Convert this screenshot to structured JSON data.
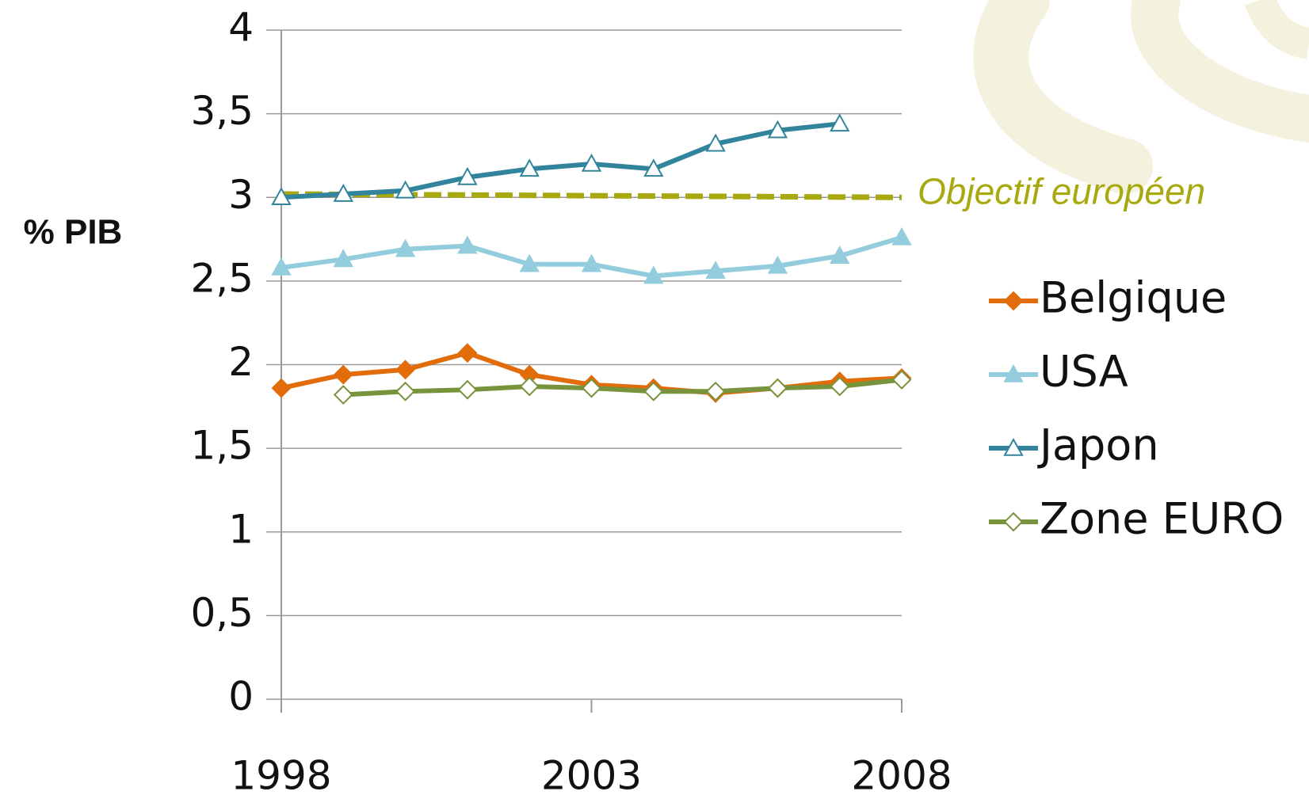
{
  "chart_data": {
    "type": "line",
    "ylabel": "% PIB",
    "x": [
      1998,
      1999,
      2000,
      2001,
      2002,
      2003,
      2004,
      2005,
      2006,
      2007,
      2008
    ],
    "xlim": [
      1998,
      2008
    ],
    "xticks": [
      1998,
      2003,
      2008
    ],
    "ylim": [
      0,
      4
    ],
    "yticks": [
      0,
      {
        "value": 0.5,
        "label": "0,5"
      },
      1,
      {
        "value": 1.5,
        "label": "1,5"
      },
      2,
      {
        "value": 2.5,
        "label": "2,5"
      },
      3,
      {
        "value": 3.5,
        "label": "3,5"
      },
      4
    ],
    "grid": true,
    "series": [
      {
        "name": "Belgique",
        "color": "#e36c0a",
        "marker": "diamond",
        "filled": true,
        "values": [
          1.86,
          1.94,
          1.97,
          2.07,
          1.94,
          1.88,
          1.86,
          1.83,
          1.86,
          1.9,
          1.92
        ]
      },
      {
        "name": "USA",
        "color": "#93cddd",
        "marker": "triangle",
        "filled": true,
        "values": [
          2.58,
          2.63,
          2.69,
          2.71,
          2.6,
          2.6,
          2.53,
          2.56,
          2.59,
          2.65,
          2.76
        ]
      },
      {
        "name": "Japon",
        "color": "#31849b",
        "marker": "triangle",
        "filled": false,
        "values": [
          3.0,
          3.02,
          3.04,
          3.12,
          3.17,
          3.2,
          3.17,
          3.32,
          3.4,
          3.44,
          null
        ]
      },
      {
        "name": "Zone EURO",
        "color": "#77933c",
        "marker": "diamond",
        "filled": false,
        "values": [
          null,
          1.82,
          1.84,
          1.85,
          1.87,
          1.86,
          1.84,
          1.84,
          1.86,
          1.87,
          1.91
        ]
      }
    ],
    "target": {
      "label": "Objectif européen",
      "color": "#a8a90f",
      "x": [
        1998,
        2008
      ],
      "values": [
        3.02,
        3.0
      ]
    }
  }
}
